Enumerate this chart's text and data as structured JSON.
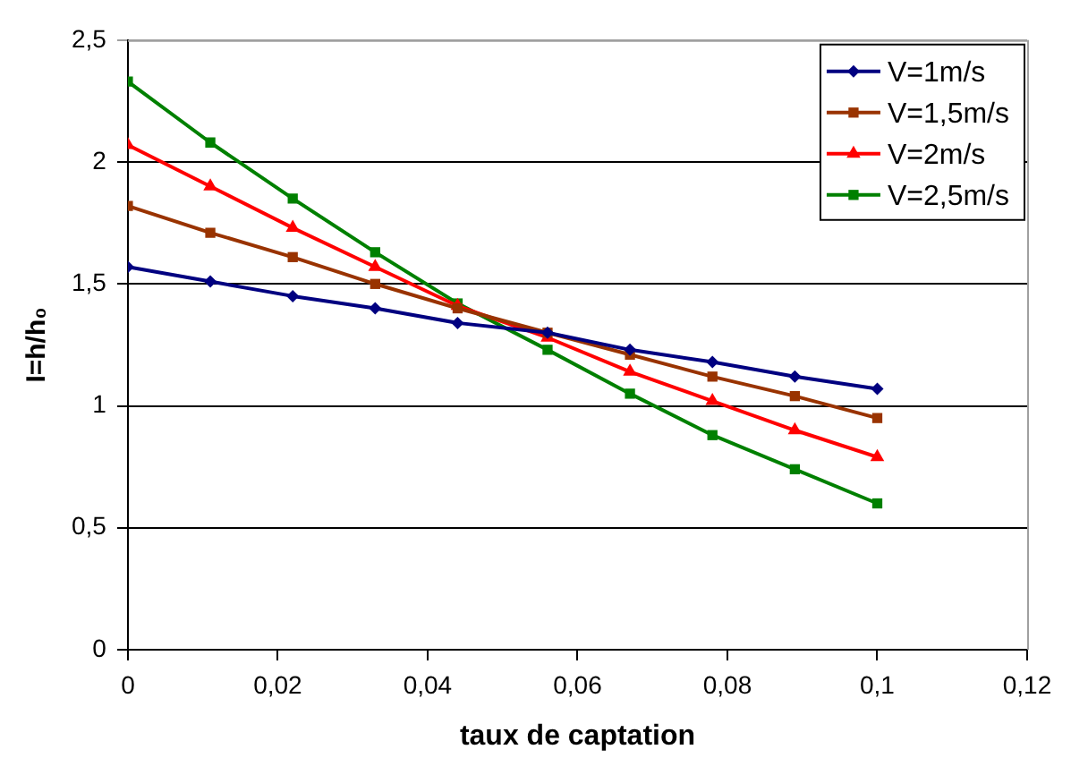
{
  "chart_data": {
    "type": "line",
    "xlabel": "taux de captation",
    "ylabel": "I=h/h₀",
    "x": [
      0,
      0.011,
      0.022,
      0.033,
      0.044,
      0.056,
      0.067,
      0.078,
      0.089,
      0.1
    ],
    "series": [
      {
        "name": "V=1m/s",
        "color": "#000080",
        "marker": "diamond",
        "values": [
          1.57,
          1.51,
          1.45,
          1.4,
          1.34,
          1.3,
          1.23,
          1.18,
          1.12,
          1.07
        ]
      },
      {
        "name": "V=1,5m/s",
        "color": "#993300",
        "marker": "square",
        "values": [
          1.82,
          1.71,
          1.61,
          1.5,
          1.4,
          1.3,
          1.21,
          1.12,
          1.04,
          0.95
        ]
      },
      {
        "name": "V=2m/s",
        "color": "#ff0000",
        "marker": "triangle",
        "values": [
          2.07,
          1.9,
          1.73,
          1.57,
          1.41,
          1.28,
          1.14,
          1.02,
          0.9,
          0.79
        ]
      },
      {
        "name": "V=2,5m/s",
        "color": "#008000",
        "marker": "square",
        "values": [
          2.33,
          2.08,
          1.85,
          1.63,
          1.42,
          1.23,
          1.05,
          0.88,
          0.74,
          0.6
        ]
      }
    ],
    "xlim": [
      0,
      0.12
    ],
    "xticks": [
      0,
      {
        "value": 0.02,
        "label": "0,02"
      },
      {
        "value": 0.04,
        "label": "0,04"
      },
      {
        "value": 0.06,
        "label": "0,06"
      },
      {
        "value": 0.08,
        "label": "0,08"
      },
      {
        "value": 0.1,
        "label": "0,1"
      },
      {
        "value": 0.12,
        "label": "0,12"
      }
    ],
    "ylim": [
      0,
      2.5
    ],
    "yticks": [
      0,
      {
        "value": 0.5,
        "label": "0,5"
      },
      1,
      {
        "value": 1.5,
        "label": "1,5"
      },
      2,
      {
        "value": 2.5,
        "label": "2,5"
      }
    ],
    "grid": "y",
    "legend": "top right"
  }
}
